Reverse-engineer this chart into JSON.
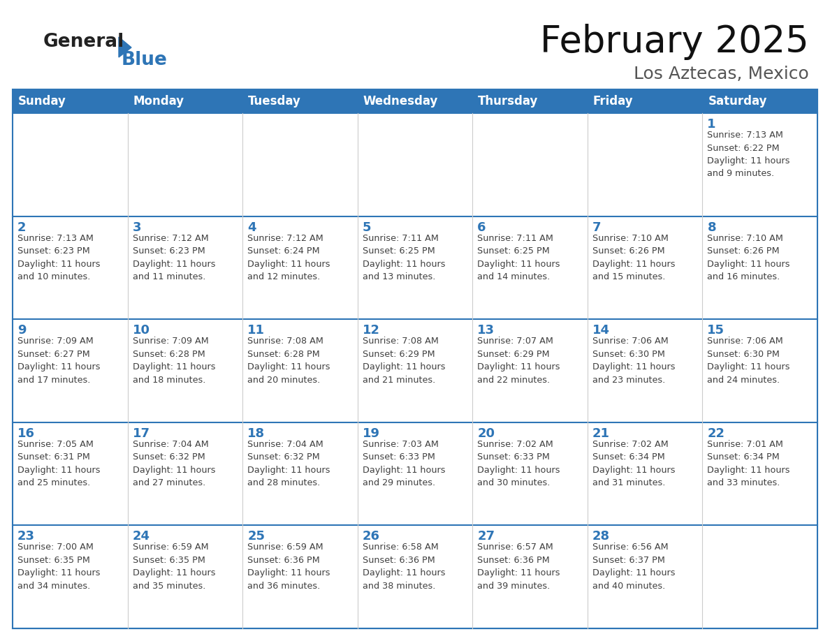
{
  "title": "February 2025",
  "subtitle": "Los Aztecas, Mexico",
  "header_bg": "#2E75B6",
  "header_text_color": "#FFFFFF",
  "cell_border_color": "#2E75B6",
  "day_number_color": "#2E75B6",
  "info_text_color": "#404040",
  "background_color": "#FFFFFF",
  "days_of_week": [
    "Sunday",
    "Monday",
    "Tuesday",
    "Wednesday",
    "Thursday",
    "Friday",
    "Saturday"
  ],
  "calendar": [
    [
      null,
      null,
      null,
      null,
      null,
      null,
      {
        "day": 1,
        "sunrise": "7:13 AM",
        "sunset": "6:22 PM",
        "daylight": "11 hours\nand 9 minutes."
      }
    ],
    [
      {
        "day": 2,
        "sunrise": "7:13 AM",
        "sunset": "6:23 PM",
        "daylight": "11 hours\nand 10 minutes."
      },
      {
        "day": 3,
        "sunrise": "7:12 AM",
        "sunset": "6:23 PM",
        "daylight": "11 hours\nand 11 minutes."
      },
      {
        "day": 4,
        "sunrise": "7:12 AM",
        "sunset": "6:24 PM",
        "daylight": "11 hours\nand 12 minutes."
      },
      {
        "day": 5,
        "sunrise": "7:11 AM",
        "sunset": "6:25 PM",
        "daylight": "11 hours\nand 13 minutes."
      },
      {
        "day": 6,
        "sunrise": "7:11 AM",
        "sunset": "6:25 PM",
        "daylight": "11 hours\nand 14 minutes."
      },
      {
        "day": 7,
        "sunrise": "7:10 AM",
        "sunset": "6:26 PM",
        "daylight": "11 hours\nand 15 minutes."
      },
      {
        "day": 8,
        "sunrise": "7:10 AM",
        "sunset": "6:26 PM",
        "daylight": "11 hours\nand 16 minutes."
      }
    ],
    [
      {
        "day": 9,
        "sunrise": "7:09 AM",
        "sunset": "6:27 PM",
        "daylight": "11 hours\nand 17 minutes."
      },
      {
        "day": 10,
        "sunrise": "7:09 AM",
        "sunset": "6:28 PM",
        "daylight": "11 hours\nand 18 minutes."
      },
      {
        "day": 11,
        "sunrise": "7:08 AM",
        "sunset": "6:28 PM",
        "daylight": "11 hours\nand 20 minutes."
      },
      {
        "day": 12,
        "sunrise": "7:08 AM",
        "sunset": "6:29 PM",
        "daylight": "11 hours\nand 21 minutes."
      },
      {
        "day": 13,
        "sunrise": "7:07 AM",
        "sunset": "6:29 PM",
        "daylight": "11 hours\nand 22 minutes."
      },
      {
        "day": 14,
        "sunrise": "7:06 AM",
        "sunset": "6:30 PM",
        "daylight": "11 hours\nand 23 minutes."
      },
      {
        "day": 15,
        "sunrise": "7:06 AM",
        "sunset": "6:30 PM",
        "daylight": "11 hours\nand 24 minutes."
      }
    ],
    [
      {
        "day": 16,
        "sunrise": "7:05 AM",
        "sunset": "6:31 PM",
        "daylight": "11 hours\nand 25 minutes."
      },
      {
        "day": 17,
        "sunrise": "7:04 AM",
        "sunset": "6:32 PM",
        "daylight": "11 hours\nand 27 minutes."
      },
      {
        "day": 18,
        "sunrise": "7:04 AM",
        "sunset": "6:32 PM",
        "daylight": "11 hours\nand 28 minutes."
      },
      {
        "day": 19,
        "sunrise": "7:03 AM",
        "sunset": "6:33 PM",
        "daylight": "11 hours\nand 29 minutes."
      },
      {
        "day": 20,
        "sunrise": "7:02 AM",
        "sunset": "6:33 PM",
        "daylight": "11 hours\nand 30 minutes."
      },
      {
        "day": 21,
        "sunrise": "7:02 AM",
        "sunset": "6:34 PM",
        "daylight": "11 hours\nand 31 minutes."
      },
      {
        "day": 22,
        "sunrise": "7:01 AM",
        "sunset": "6:34 PM",
        "daylight": "11 hours\nand 33 minutes."
      }
    ],
    [
      {
        "day": 23,
        "sunrise": "7:00 AM",
        "sunset": "6:35 PM",
        "daylight": "11 hours\nand 34 minutes."
      },
      {
        "day": 24,
        "sunrise": "6:59 AM",
        "sunset": "6:35 PM",
        "daylight": "11 hours\nand 35 minutes."
      },
      {
        "day": 25,
        "sunrise": "6:59 AM",
        "sunset": "6:36 PM",
        "daylight": "11 hours\nand 36 minutes."
      },
      {
        "day": 26,
        "sunrise": "6:58 AM",
        "sunset": "6:36 PM",
        "daylight": "11 hours\nand 38 minutes."
      },
      {
        "day": 27,
        "sunrise": "6:57 AM",
        "sunset": "6:36 PM",
        "daylight": "11 hours\nand 39 minutes."
      },
      {
        "day": 28,
        "sunrise": "6:56 AM",
        "sunset": "6:37 PM",
        "daylight": "11 hours\nand 40 minutes."
      },
      null
    ]
  ],
  "logo_general_color": "#222222",
  "logo_blue_color": "#2E75B6",
  "title_color": "#111111",
  "subtitle_color": "#555555"
}
